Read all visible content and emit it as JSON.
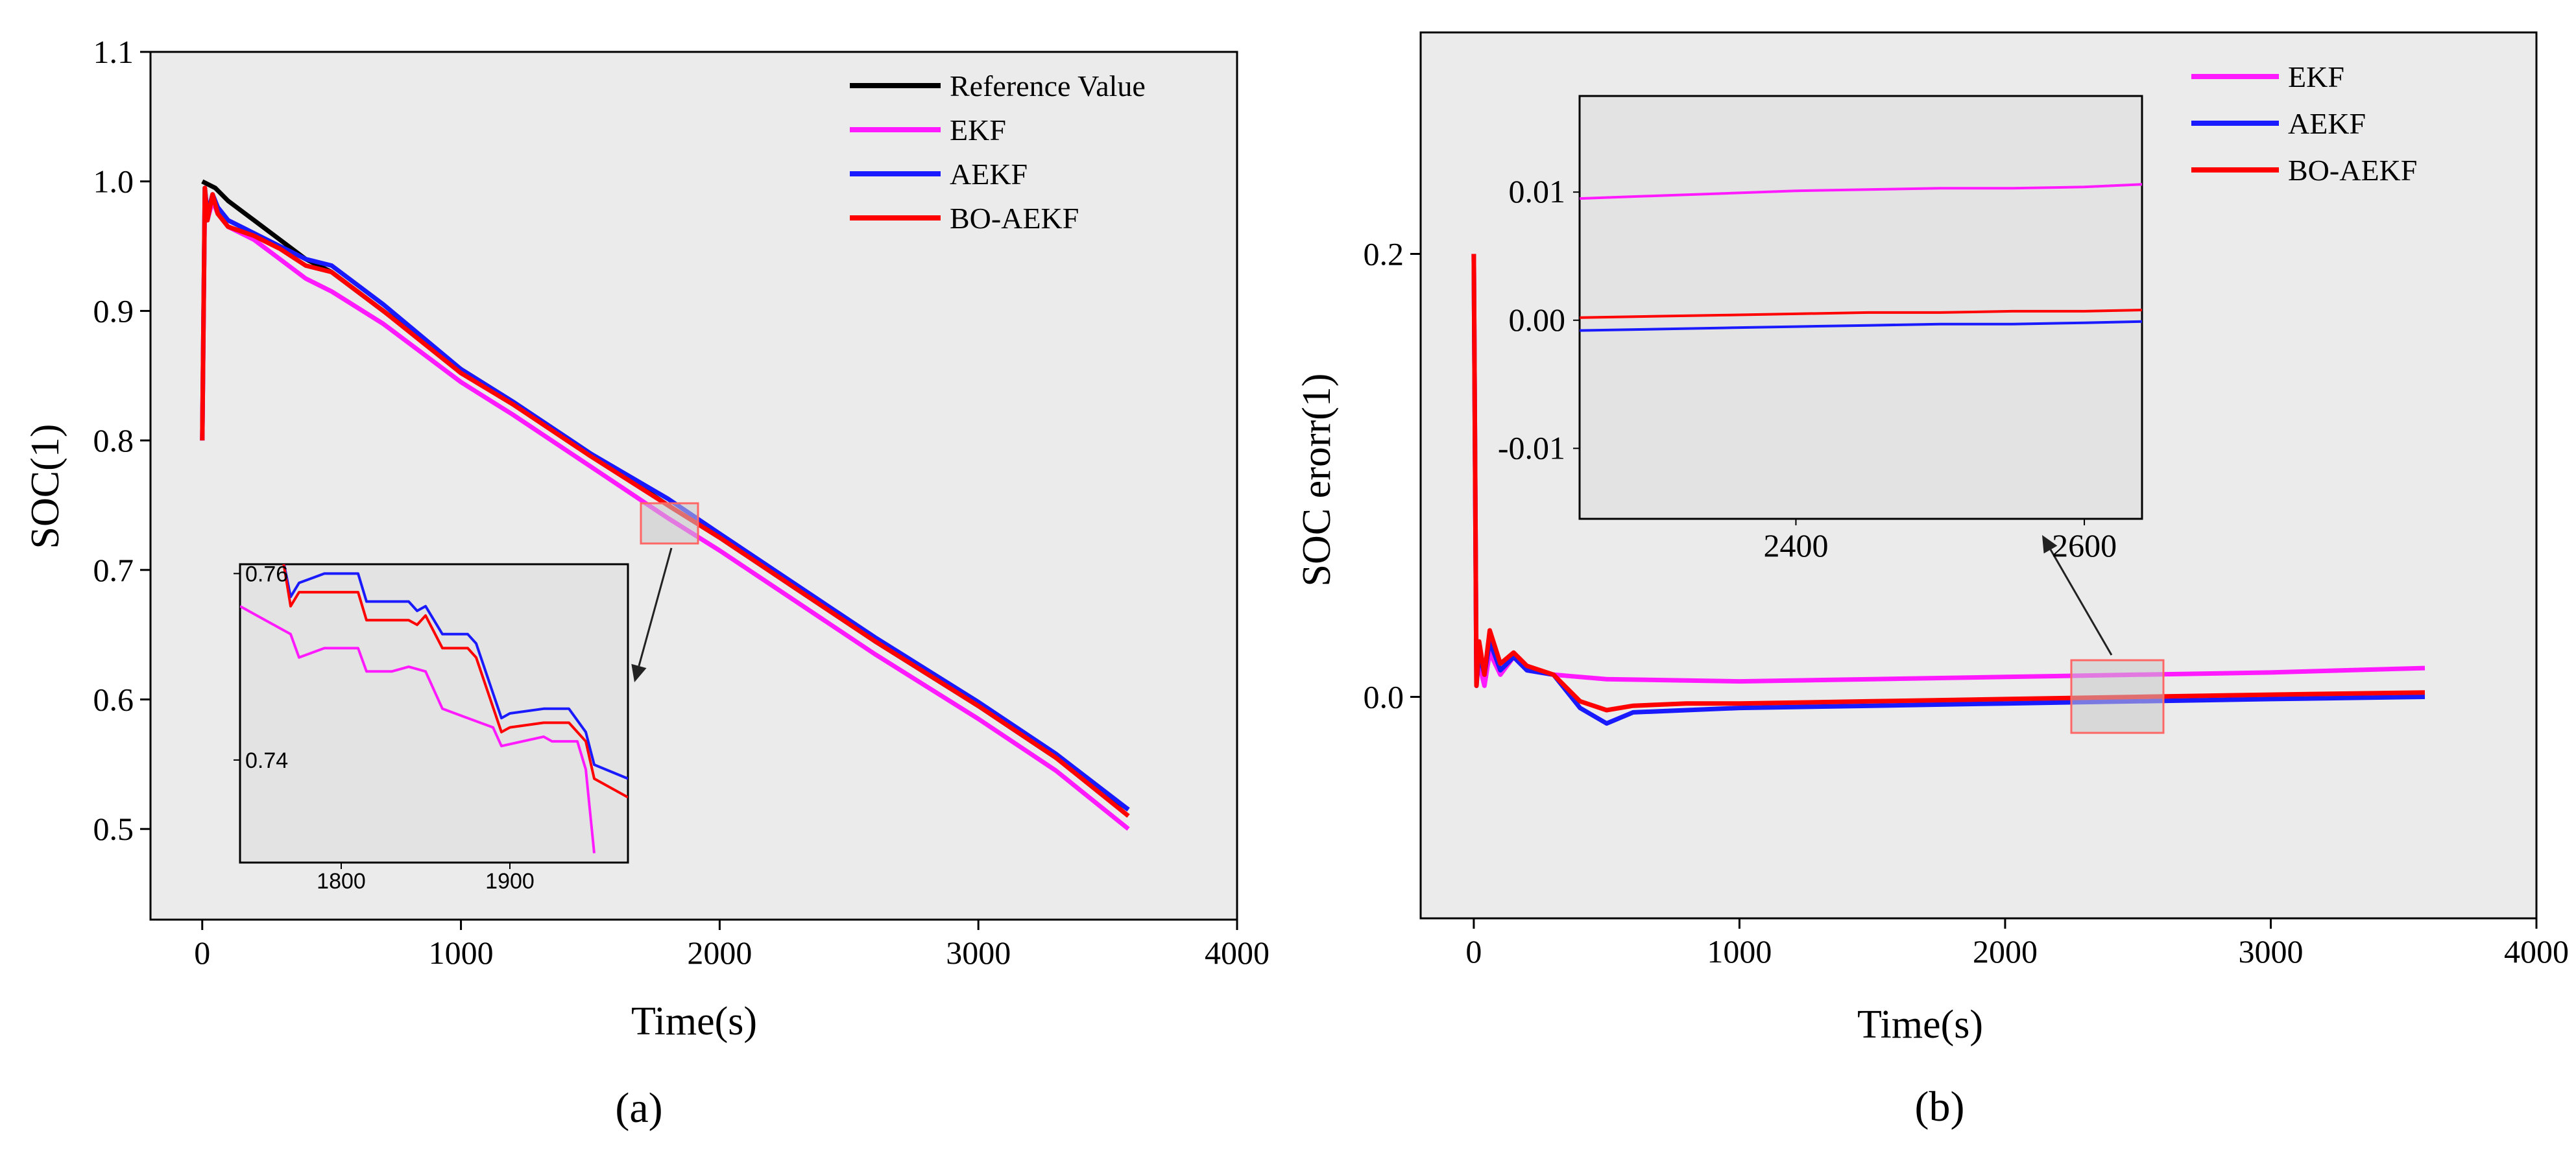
{
  "chart_data": [
    {
      "id": "a",
      "type": "line",
      "caption": "(a)",
      "xlabel": "Time(s)",
      "ylabel": "SOC(1)",
      "xlim": [
        -200,
        4000
      ],
      "ylim": [
        0.43,
        1.1
      ],
      "xticks": [
        0,
        1000,
        2000,
        3000,
        4000
      ],
      "yticks": [
        0.5,
        0.6,
        0.7,
        0.8,
        0.9,
        1.0,
        1.1
      ],
      "xtick_labels": [
        "0",
        "1000",
        "2000",
        "3000",
        "4000"
      ],
      "ytick_labels": [
        "0.5",
        "0.6",
        "0.7",
        "0.8",
        "0.9",
        "1.0",
        "1.1"
      ],
      "legend_position": "top-right",
      "series": [
        {
          "name": "Reference Value",
          "color": "#000000",
          "x": [
            0,
            50,
            100,
            200,
            300,
            400,
            500,
            700,
            1000,
            1200,
            1500,
            1800,
            2000,
            2300,
            2600,
            3000,
            3300,
            3580
          ],
          "y": [
            1.0,
            0.995,
            0.985,
            0.97,
            0.955,
            0.94,
            0.93,
            0.9,
            0.855,
            0.83,
            0.79,
            0.75,
            0.725,
            0.685,
            0.645,
            0.595,
            0.555,
            0.515
          ]
        },
        {
          "name": "EKF",
          "color": "#ff1aff",
          "x": [
            0,
            10,
            20,
            40,
            60,
            100,
            200,
            300,
            400,
            500,
            700,
            1000,
            1200,
            1500,
            1800,
            2000,
            2300,
            2600,
            3000,
            3300,
            3580
          ],
          "y": [
            0.8,
            0.99,
            0.97,
            0.985,
            0.975,
            0.965,
            0.955,
            0.94,
            0.925,
            0.915,
            0.89,
            0.845,
            0.82,
            0.78,
            0.74,
            0.715,
            0.675,
            0.635,
            0.585,
            0.545,
            0.5
          ]
        },
        {
          "name": "AEKF",
          "color": "#1a1aff",
          "x": [
            0,
            10,
            20,
            40,
            60,
            100,
            200,
            300,
            400,
            500,
            700,
            1000,
            1200,
            1500,
            1800,
            2000,
            2300,
            2600,
            3000,
            3300,
            3580
          ],
          "y": [
            0.8,
            0.995,
            0.975,
            0.99,
            0.98,
            0.97,
            0.96,
            0.95,
            0.94,
            0.935,
            0.905,
            0.855,
            0.83,
            0.79,
            0.755,
            0.728,
            0.688,
            0.648,
            0.598,
            0.558,
            0.515
          ]
        },
        {
          "name": "BO-AEKF",
          "color": "#ff0000",
          "x": [
            0,
            10,
            20,
            40,
            60,
            100,
            200,
            300,
            400,
            500,
            700,
            1000,
            1200,
            1500,
            1800,
            2000,
            2300,
            2600,
            3000,
            3300,
            3580
          ],
          "y": [
            0.8,
            0.995,
            0.97,
            0.99,
            0.975,
            0.965,
            0.958,
            0.948,
            0.935,
            0.93,
            0.9,
            0.852,
            0.828,
            0.788,
            0.75,
            0.725,
            0.685,
            0.645,
            0.595,
            0.555,
            0.51
          ]
        }
      ],
      "inset": {
        "xlim": [
          1740,
          1970
        ],
        "ylim": [
          0.729,
          0.761
        ],
        "xticks": [
          1800,
          1900
        ],
        "yticks": [
          0.74,
          0.76
        ],
        "xtick_labels": [
          "1800",
          "1900"
        ],
        "ytick_labels": [
          "0.74",
          "0.76"
        ],
        "series": [
          {
            "name": "EKF",
            "color": "#ff1aff",
            "x": [
              1740,
              1750,
              1770,
              1775,
              1790,
              1810,
              1815,
              1830,
              1840,
              1850,
              1860,
              1875,
              1890,
              1895,
              1920,
              1925,
              1940,
              1945,
              1950
            ],
            "y": [
              0.7565,
              0.7555,
              0.7535,
              0.751,
              0.752,
              0.752,
              0.7495,
              0.7495,
              0.75,
              0.7495,
              0.7455,
              0.7445,
              0.7435,
              0.7415,
              0.7425,
              0.742,
              0.742,
              0.739,
              0.73
            ]
          },
          {
            "name": "AEKF",
            "color": "#1a1aff",
            "x": [
              1740,
              1765,
              1770,
              1775,
              1790,
              1810,
              1815,
              1840,
              1845,
              1850,
              1860,
              1875,
              1880,
              1895,
              1900,
              1920,
              1935,
              1945,
              1950,
              1970
            ],
            "y": [
              0.762,
              0.762,
              0.7575,
              0.759,
              0.76,
              0.76,
              0.757,
              0.757,
              0.756,
              0.7565,
              0.7535,
              0.7535,
              0.7525,
              0.7445,
              0.745,
              0.7455,
              0.7455,
              0.743,
              0.7395,
              0.738
            ]
          },
          {
            "name": "BO-AEKF",
            "color": "#ff0000",
            "x": [
              1740,
              1765,
              1770,
              1775,
              1790,
              1810,
              1815,
              1840,
              1845,
              1850,
              1860,
              1875,
              1880,
              1895,
              1900,
              1920,
              1935,
              1945,
              1950,
              1970
            ],
            "y": [
              0.762,
              0.762,
              0.7565,
              0.758,
              0.758,
              0.758,
              0.755,
              0.755,
              0.7545,
              0.7555,
              0.752,
              0.752,
              0.751,
              0.743,
              0.7435,
              0.744,
              0.744,
              0.742,
              0.738,
              0.736
            ]
          }
        ]
      }
    },
    {
      "id": "b",
      "type": "line",
      "caption": "(b)",
      "xlabel": "Time(s)",
      "ylabel": "SOC erorr(1)",
      "xlim": [
        -200,
        4000
      ],
      "ylim": [
        -0.1,
        0.3
      ],
      "xticks": [
        0,
        1000,
        2000,
        3000,
        4000
      ],
      "yticks": [
        0.0,
        0.2
      ],
      "xtick_labels": [
        "0",
        "1000",
        "2000",
        "3000",
        "4000"
      ],
      "ytick_labels": [
        "0.0",
        "0.2"
      ],
      "legend_position": "top-right",
      "series": [
        {
          "name": "EKF",
          "color": "#ff1aff",
          "x": [
            0,
            10,
            20,
            40,
            60,
            100,
            150,
            200,
            300,
            500,
            1000,
            1500,
            2000,
            2500,
            3000,
            3580
          ],
          "y": [
            0.2,
            0.01,
            0.015,
            0.005,
            0.02,
            0.01,
            0.018,
            0.012,
            0.01,
            0.008,
            0.007,
            0.008,
            0.009,
            0.01,
            0.011,
            0.013
          ]
        },
        {
          "name": "AEKF",
          "color": "#1a1aff",
          "x": [
            0,
            10,
            20,
            40,
            60,
            100,
            150,
            200,
            300,
            400,
            500,
            600,
            800,
            1000,
            1500,
            2000,
            2500,
            3000,
            3580
          ],
          "y": [
            0.2,
            0.005,
            0.02,
            0.01,
            0.025,
            0.012,
            0.018,
            0.012,
            0.01,
            -0.005,
            -0.012,
            -0.007,
            -0.006,
            -0.005,
            -0.004,
            -0.003,
            -0.002,
            -0.001,
            0.0
          ]
        },
        {
          "name": "BO-AEKF",
          "color": "#ff0000",
          "x": [
            0,
            10,
            20,
            40,
            60,
            100,
            150,
            200,
            300,
            400,
            500,
            600,
            800,
            1000,
            1500,
            2000,
            2500,
            3000,
            3580
          ],
          "y": [
            0.2,
            0.005,
            0.025,
            0.01,
            0.03,
            0.015,
            0.02,
            0.014,
            0.01,
            -0.002,
            -0.006,
            -0.004,
            -0.003,
            -0.003,
            -0.002,
            -0.001,
            0.0,
            0.001,
            0.002
          ]
        }
      ],
      "inset": {
        "xlim": [
          2250,
          2640
        ],
        "ylim": [
          -0.0155,
          0.0175
        ],
        "xticks": [
          2400,
          2600
        ],
        "yticks": [
          -0.01,
          0.0,
          0.01
        ],
        "xtick_labels": [
          "2400",
          "2600"
        ],
        "ytick_labels": [
          "-0.01",
          "0.00",
          "0.01"
        ],
        "series": [
          {
            "name": "EKF",
            "color": "#ff1aff",
            "x": [
              2250,
              2300,
              2350,
              2400,
              2450,
              2500,
              2550,
              2600,
              2640
            ],
            "y": [
              0.0095,
              0.0097,
              0.0099,
              0.0101,
              0.0102,
              0.0103,
              0.0103,
              0.0104,
              0.0106
            ]
          },
          {
            "name": "AEKF",
            "color": "#1a1aff",
            "x": [
              2250,
              2300,
              2350,
              2400,
              2450,
              2500,
              2550,
              2600,
              2640
            ],
            "y": [
              -0.0008,
              -0.0007,
              -0.0006,
              -0.0005,
              -0.0004,
              -0.0003,
              -0.0003,
              -0.0002,
              -0.0001
            ]
          },
          {
            "name": "BO-AEKF",
            "color": "#ff0000",
            "x": [
              2250,
              2300,
              2350,
              2400,
              2450,
              2500,
              2550,
              2600,
              2640
            ],
            "y": [
              0.0002,
              0.0003,
              0.0004,
              0.0005,
              0.0006,
              0.0006,
              0.0007,
              0.0007,
              0.0008
            ]
          }
        ]
      }
    }
  ]
}
